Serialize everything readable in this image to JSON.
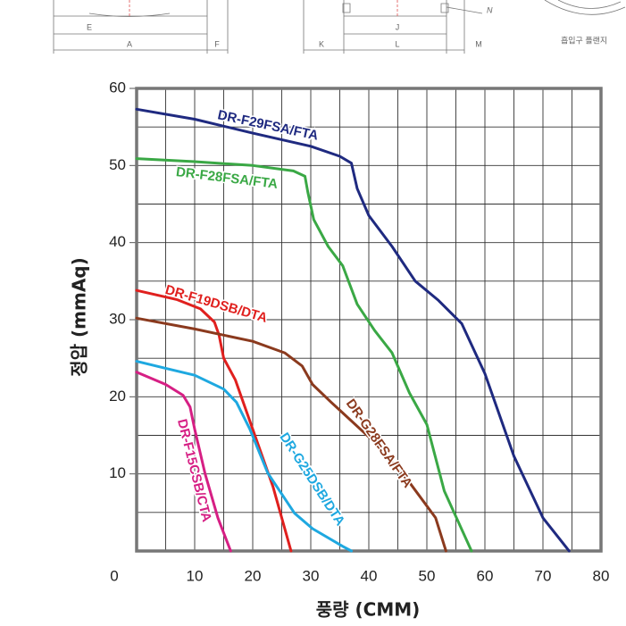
{
  "drawing": {
    "labels": [
      "E",
      "A",
      "F",
      "K",
      "J",
      "L",
      "M",
      "N",
      "흡입구 플랜지"
    ]
  },
  "chart_data": {
    "type": "line",
    "y_label": "정압 (mmAq)",
    "x_label": "풍량 (CMM)",
    "xlim": [
      0,
      80
    ],
    "ylim": [
      0,
      60
    ],
    "xticks": [
      0,
      10,
      20,
      30,
      40,
      50,
      60,
      70,
      80
    ],
    "yticks": [
      10,
      20,
      30,
      40,
      50,
      60
    ],
    "minor_xticks": [
      5,
      15,
      25,
      35,
      45,
      55,
      65,
      75
    ],
    "minor_yticks": [
      5,
      15,
      25,
      35,
      45,
      55
    ],
    "grid": true,
    "series": [
      {
        "name": "DR-F29FSA/FTA",
        "color": "#1f2a80",
        "x": [
          0,
          10,
          20,
          30,
          35,
          37,
          38,
          40,
          44,
          48,
          52,
          56,
          60,
          65,
          70,
          74.5
        ],
        "values": [
          57.3,
          56,
          54.2,
          52.5,
          51.2,
          50.3,
          47,
          43.5,
          39.5,
          35,
          32.5,
          29.5,
          23,
          12.3,
          4.3,
          0
        ]
      },
      {
        "name": "DR-F28FSA/FTA",
        "color": "#3aa845",
        "x": [
          0,
          10,
          20,
          27,
          29,
          29.5,
          30.5,
          33,
          35.5,
          38,
          41,
          44,
          47,
          50,
          53,
          57.7
        ],
        "values": [
          50.9,
          50.5,
          50,
          49.3,
          48.6,
          46.5,
          43,
          39.5,
          37,
          32,
          28.6,
          25.7,
          20.5,
          16.4,
          7.8,
          0
        ]
      },
      {
        "name": "DR-F19DSB/DTA",
        "color": "#e0201e",
        "x": [
          0,
          7,
          11,
          13.4,
          14.2,
          15,
          17,
          20,
          23.5,
          26.6
        ],
        "values": [
          33.8,
          32.6,
          31.4,
          29.7,
          28,
          25,
          22.2,
          15.8,
          8.3,
          0
        ]
      },
      {
        "name": "DR-G28FSA/FTA",
        "color": "#8b3a1e",
        "x": [
          0,
          10,
          20,
          25.5,
          28.5,
          30.3,
          33.5,
          41,
          47,
          51.5,
          53.3
        ],
        "values": [
          30.2,
          28.8,
          27.2,
          25.7,
          24,
          21.6,
          19.3,
          14.1,
          8.9,
          4.3,
          0
        ]
      },
      {
        "name": "DR-G25DSB/DTA",
        "color": "#1ea8e0",
        "x": [
          0,
          5,
          10,
          15,
          17.2,
          19.5,
          22.6,
          27.2,
          30.3,
          35.5,
          37
        ],
        "values": [
          24.6,
          23.7,
          22.8,
          21,
          19.3,
          15.8,
          10.1,
          4.9,
          2.9,
          0.6,
          0
        ]
      },
      {
        "name": "DR-F15CSB/CTA",
        "color": "#d61f84",
        "x": [
          0,
          5,
          8,
          9.2,
          10,
          11.8,
          14,
          16.2
        ],
        "values": [
          23.2,
          21.6,
          20.2,
          18.7,
          15.8,
          10,
          4.3,
          0
        ]
      }
    ]
  }
}
